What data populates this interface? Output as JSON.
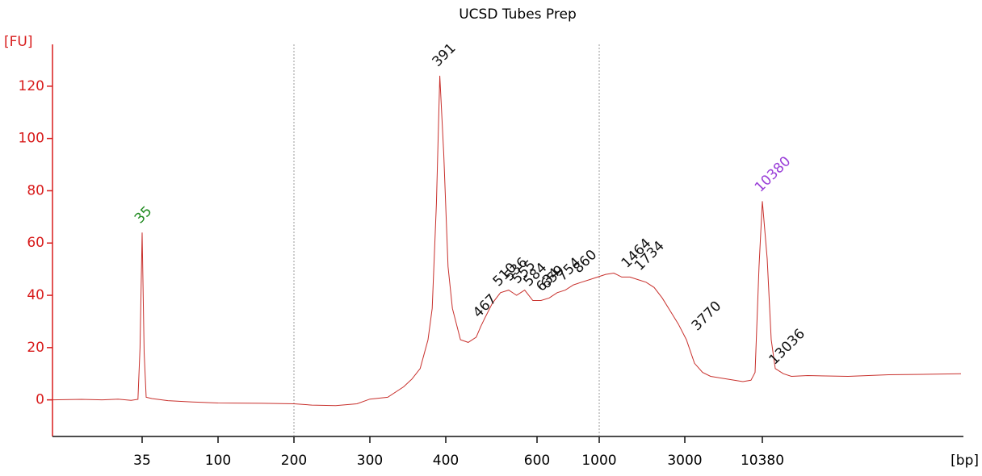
{
  "chart_data": {
    "type": "line",
    "title": "UCSD Tubes Prep",
    "ylabel": "[FU]",
    "xlabel": "[bp]",
    "color": "#c8302c",
    "x": [
      10,
      15,
      20,
      25,
      30,
      33,
      34,
      35,
      36,
      37,
      40,
      50,
      70,
      100,
      150,
      200,
      220,
      250,
      280,
      300,
      321,
      341,
      352,
      363,
      374,
      380,
      386,
      391,
      397,
      404,
      412,
      427,
      442,
      458,
      467,
      475,
      492,
      510,
      529,
      548,
      568,
      589,
      620,
      663,
      708,
      757,
      809,
      864,
      924,
      987,
      1087,
      1205,
      1336,
      1483,
      1644,
      1824,
      2024,
      2245,
      2489,
      2762,
      3079,
      3503,
      3986,
      4534,
      5872,
      7604,
      8654,
      9240,
      9850,
      10380,
      11218,
      11967,
      12770,
      14530,
      16540,
      21470,
      41000,
      78400,
      149500,
      250000
    ],
    "values": [
      0,
      0.2,
      0,
      0.3,
      -0.2,
      0.2,
      20,
      64,
      18,
      1,
      0.5,
      -0.3,
      -0.8,
      -1.2,
      -1.3,
      -1.5,
      -2,
      -2.2,
      -1.5,
      0.3,
      1,
      5,
      8,
      12,
      23,
      35,
      75,
      124,
      94,
      51,
      35,
      23,
      22,
      24,
      28,
      31,
      37,
      41,
      42,
      40,
      42,
      38,
      38,
      39,
      41,
      42,
      44,
      45,
      46,
      47,
      48,
      48.5,
      47,
      47,
      46,
      45,
      43,
      39,
      34,
      29,
      23,
      14,
      10.5,
      9,
      8,
      7,
      7.5,
      10.5,
      51,
      76,
      54,
      23,
      12,
      10,
      9,
      9.3,
      9,
      9.6,
      9.8,
      10
    ],
    "peaks": {
      "x": [
        35,
        391,
        467,
        510,
        536,
        555,
        584,
        634,
        659,
        754,
        860,
        1464,
        1734,
        3770,
        10380,
        13036
      ],
      "y": [
        64,
        124,
        28,
        40,
        42,
        41,
        40,
        38,
        39,
        42,
        45,
        47,
        46,
        23,
        76,
        10
      ],
      "colors": [
        "#1f8a1f",
        "#111111",
        "#111111",
        "#111111",
        "#111111",
        "#111111",
        "#111111",
        "#111111",
        "#111111",
        "#111111",
        "#111111",
        "#111111",
        "#111111",
        "#111111",
        "#9a3fd8",
        "#111111"
      ]
    },
    "reference_lines": [
      200,
      1000
    ],
    "xlim": [
      10,
      260000
    ],
    "xticks": [
      35,
      100,
      200,
      300,
      400,
      600,
      1000,
      3000,
      10380
    ],
    "ylim": [
      -14,
      136
    ],
    "yticks": [
      0,
      20,
      40,
      60,
      80,
      100,
      120
    ]
  }
}
